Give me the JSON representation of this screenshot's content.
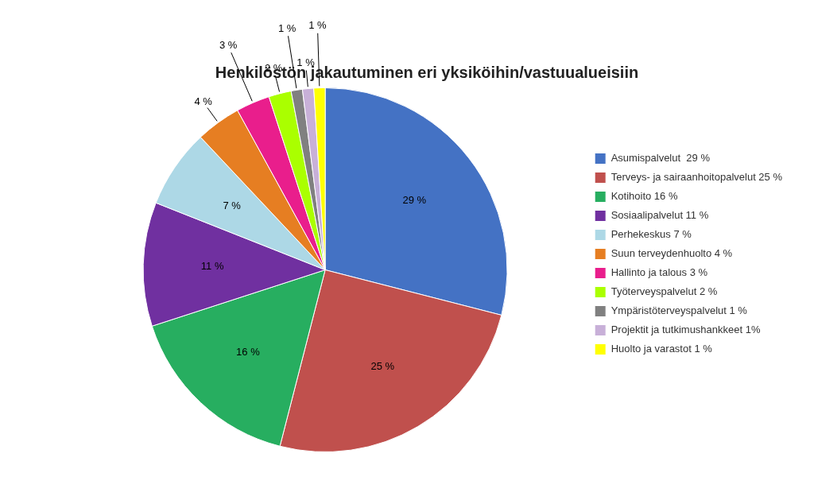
{
  "chart_data": {
    "type": "pie",
    "title": "Henkilöstön jakautuminen eri yksiköihin/vastuualueisiin",
    "categories": [
      "Asumispalvelut  29 %",
      "Terveys- ja sairaanhoitopalvelut 25 %",
      "Kotihoito 16 %",
      "Sosiaalipalvelut 11 %",
      "Perhekeskus 7 %",
      "Suun terveydenhuolto 4 %",
      "Hallinto ja talous 3 %",
      "Työterveyspalvelut 2 %",
      "Ympäristöterveyspalvelut 1 %",
      "Projektit ja tutkimushankkeet 1%",
      "Huolto ja varastot 1 %"
    ],
    "values": [
      29,
      25,
      16,
      11,
      7,
      4,
      3,
      2,
      1,
      1,
      1
    ],
    "value_labels": [
      "29 %",
      "25 %",
      "16 %",
      "11 %",
      "7 %",
      "4 %",
      "3 %",
      "2 %",
      "1 %",
      "1 %",
      "1 %"
    ],
    "colors": [
      "#4472C4",
      "#C0504D",
      "#27AE60",
      "#7030A0",
      "#ADD8E6",
      "#E67E22",
      "#E91E8C",
      "#AAFF00",
      "#808080",
      "#C8B0D8",
      "#FFFF00"
    ],
    "data_labels": true,
    "legend": "right"
  }
}
